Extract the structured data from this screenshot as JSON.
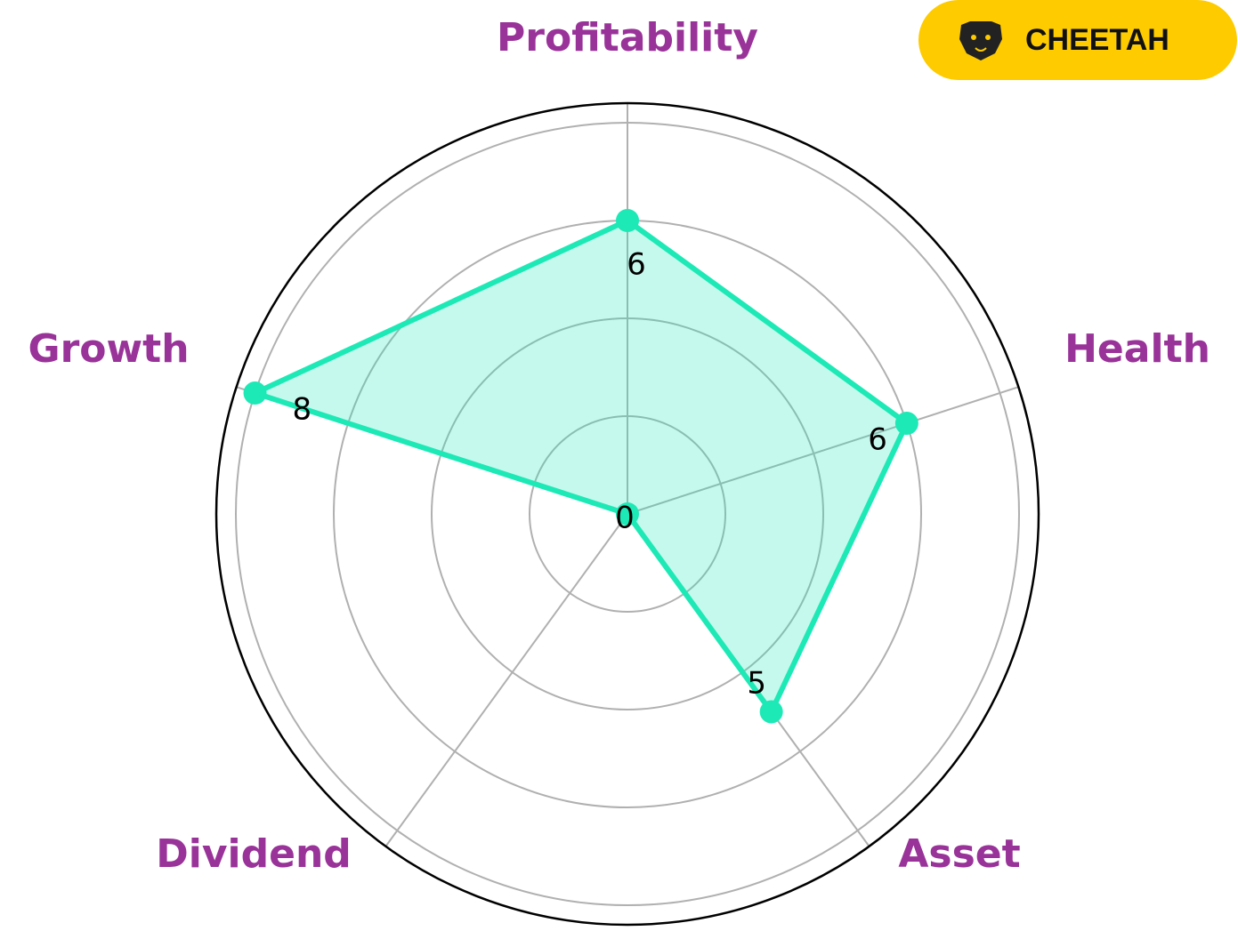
{
  "chart_data": {
    "type": "radar",
    "categories": [
      "Profitability",
      "Health",
      "Asset",
      "Dividend",
      "Growth"
    ],
    "values": [
      6,
      6,
      5,
      0,
      8
    ],
    "color": "#1de9b6",
    "label_color": "#993399",
    "ylim": [
      0,
      8.4
    ],
    "yticks": [
      2,
      4,
      6,
      8
    ],
    "grid": true
  },
  "badge": {
    "text": "CHEETAH",
    "color": "#fdcb00"
  }
}
